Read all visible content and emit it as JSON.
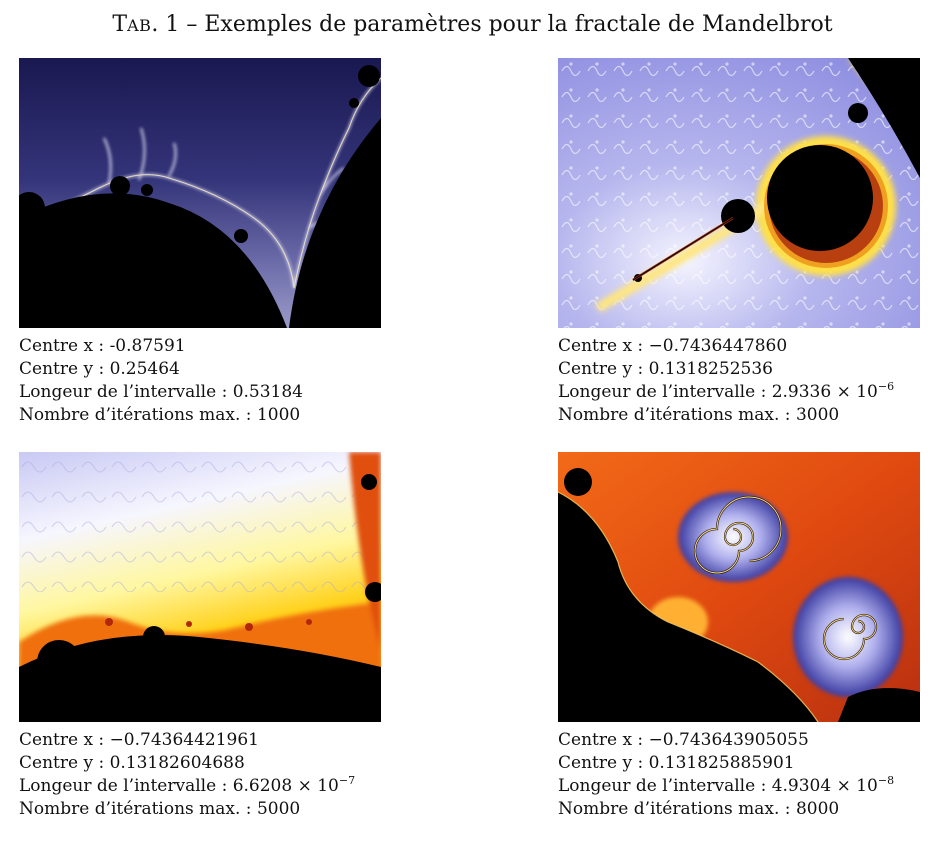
{
  "table": {
    "caption_first": "T",
    "caption_rest": "AB",
    "caption_tail": ". 1 – Exemples de paramètres pour la fractale de Mandelbrot"
  },
  "panels": [
    {
      "image_alt": "mandelbrot-render-deep-blue",
      "center_x_label": "Centre x : ",
      "center_x": "-0.87591",
      "center_y_label": "Centre y : ",
      "center_y": "0.25464",
      "length_label": "Longeur de l’intervalle : ",
      "length_mantissa": "0.53184",
      "length_exponent": "",
      "iterations_label": "Nombre d’itérations max. : ",
      "iterations": "1000"
    },
    {
      "image_alt": "mandelbrot-render-lavender-gold",
      "center_x_label": "Centre x : ",
      "center_x": "−0.7436447860",
      "center_y_label": "Centre y : ",
      "center_y": "0.1318252536",
      "length_label": "Longeur de l’intervalle : ",
      "length_mantissa": "2.9336 × 10",
      "length_exponent": "−6",
      "iterations_label": "Nombre d’itérations max. : ",
      "iterations": "3000"
    },
    {
      "image_alt": "mandelbrot-render-yellow-orange",
      "center_x_label": "Centre x : ",
      "center_x": "−0.74364421961",
      "center_y_label": "Centre y : ",
      "center_y": "0.13182604688",
      "length_label": "Longeur de l’intervalle : ",
      "length_mantissa": "6.6208 × 10",
      "length_exponent": "−7",
      "iterations_label": "Nombre d’itérations max. : ",
      "iterations": "5000"
    },
    {
      "image_alt": "mandelbrot-render-orange-spirals",
      "center_x_label": "Centre x : ",
      "center_x": "−0.743643905055",
      "center_y_label": "Centre y : ",
      "center_y": "0.131825885901",
      "length_label": "Longeur de l’intervalle : ",
      "length_mantissa": "4.9304 × 10",
      "length_exponent": "−8",
      "iterations_label": "Nombre d’itérations max. : ",
      "iterations": "8000"
    }
  ]
}
